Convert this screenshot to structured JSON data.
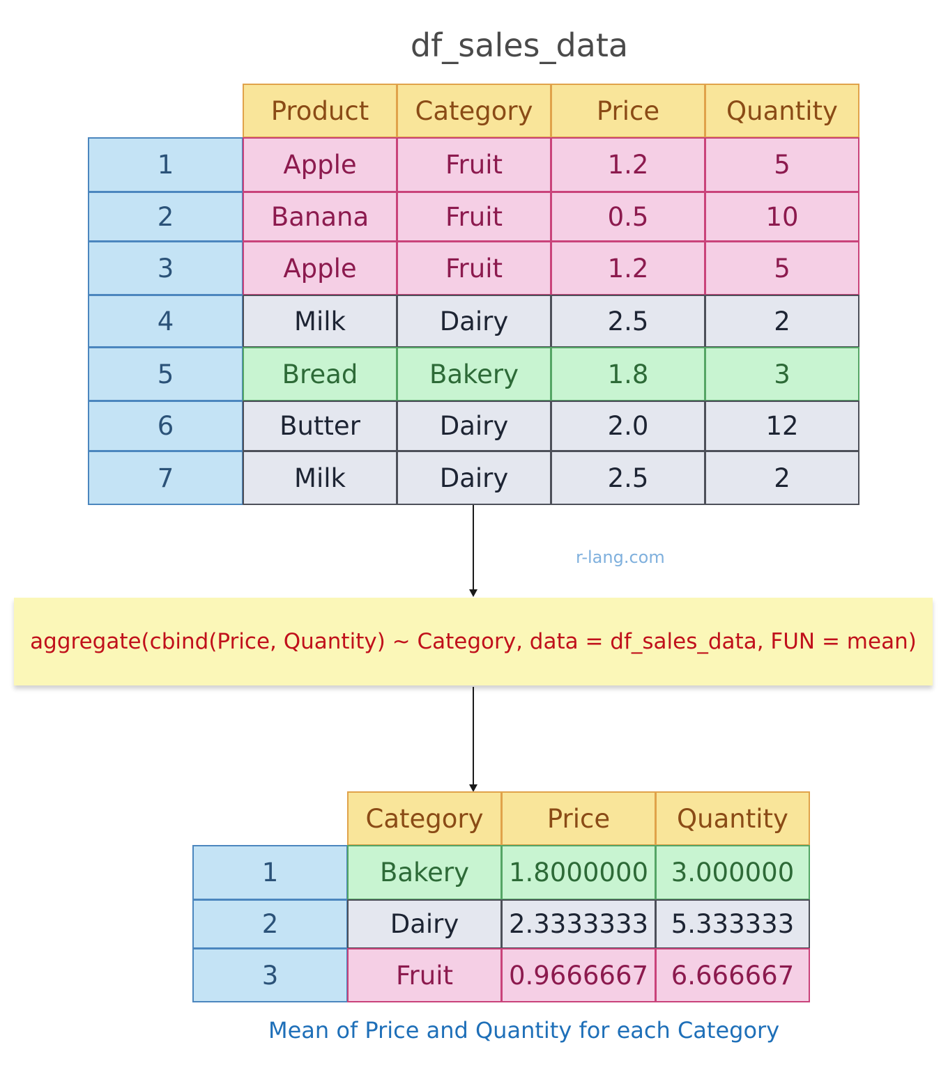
{
  "title": "df_sales_data",
  "watermark": "r-lang.com",
  "formula": "aggregate(cbind(Price, Quantity) ~ Category, data = df_sales_data, FUN = mean)",
  "caption": "Mean of Price and Quantity for each Category",
  "input_table": {
    "headers": [
      "Product",
      "Category",
      "Price",
      "Quantity"
    ],
    "rows": [
      {
        "index": "1",
        "cells": [
          "Apple",
          "Fruit",
          "1.2",
          "5"
        ],
        "style": "pink"
      },
      {
        "index": "2",
        "cells": [
          "Banana",
          "Fruit",
          "0.5",
          "10"
        ],
        "style": "pink"
      },
      {
        "index": "3",
        "cells": [
          "Apple",
          "Fruit",
          "1.2",
          "5"
        ],
        "style": "pink"
      },
      {
        "index": "4",
        "cells": [
          "Milk",
          "Dairy",
          "2.5",
          "2"
        ],
        "style": "gray"
      },
      {
        "index": "5",
        "cells": [
          "Bread",
          "Bakery",
          "1.8",
          "3"
        ],
        "style": "green"
      },
      {
        "index": "6",
        "cells": [
          "Butter",
          "Dairy",
          "2.0",
          "12"
        ],
        "style": "gray"
      },
      {
        "index": "7",
        "cells": [
          "Milk",
          "Dairy",
          "2.5",
          "2"
        ],
        "style": "gray"
      }
    ]
  },
  "output_table": {
    "headers": [
      "Category",
      "Price",
      "Quantity"
    ],
    "rows": [
      {
        "index": "1",
        "cells": [
          "Bakery",
          "1.8000000",
          "3.000000"
        ],
        "style": "green"
      },
      {
        "index": "2",
        "cells": [
          "Dairy",
          "2.3333333",
          "5.333333"
        ],
        "style": "gray"
      },
      {
        "index": "3",
        "cells": [
          "Fruit",
          "0.9666667",
          "6.666667"
        ],
        "style": "pink"
      }
    ]
  },
  "colors": {
    "fruit": "#f5cfe5",
    "dairy": "#e4e7ef",
    "bakery": "#c8f4d1",
    "header": "#f9e59a",
    "index": "#c4e3f5",
    "formula_text": "#c0101b"
  }
}
